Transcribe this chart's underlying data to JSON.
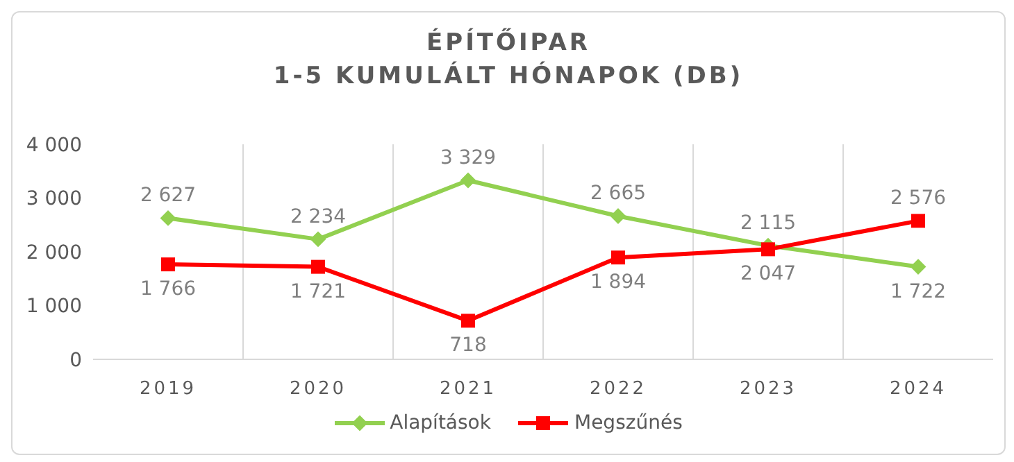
{
  "chart_data": {
    "type": "line",
    "title": "ÉPÍTŐIPAR",
    "subtitle": "1-5 KUMULÁLT HÓNAPOK (DB)",
    "categories": [
      "2019",
      "2020",
      "2021",
      "2022",
      "2023",
      "2024"
    ],
    "series": [
      {
        "name": "Alapítások",
        "color": "#92d050",
        "marker": "diamond",
        "values": [
          2627,
          2234,
          3329,
          2665,
          2115,
          1722
        ],
        "value_labels": [
          "2 627",
          "2 234",
          "3 329",
          "2 665",
          "2 115",
          "1 722"
        ]
      },
      {
        "name": "Megszűnés",
        "color": "#ff0000",
        "marker": "square",
        "values": [
          1766,
          1721,
          718,
          1894,
          2047,
          2576
        ],
        "value_labels": [
          "1 766",
          "1 721",
          "718",
          "1 894",
          "2 047",
          "2 576"
        ]
      }
    ],
    "ylim": [
      0,
      4000
    ],
    "yticks": [
      {
        "value": 0,
        "label": "0"
      },
      {
        "value": 1000,
        "label": "1 000"
      },
      {
        "value": 2000,
        "label": "2 000"
      },
      {
        "value": 3000,
        "label": "3 000"
      },
      {
        "value": 4000,
        "label": "4 000"
      }
    ],
    "grid": "x",
    "legend": "bottom"
  }
}
